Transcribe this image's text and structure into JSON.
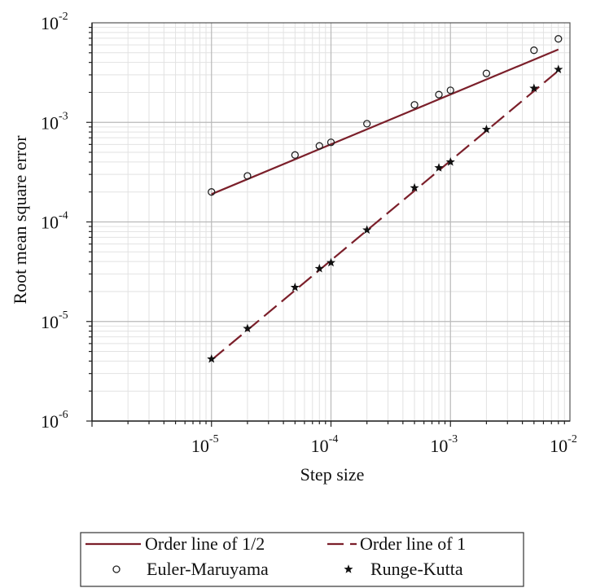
{
  "chart_data": {
    "type": "scatter",
    "xlabel": "Step size",
    "ylabel": "Root mean square error",
    "x_scale": "log",
    "y_scale": "log",
    "xlim": [
      1e-06,
      0.01
    ],
    "ylim": [
      1e-06,
      0.01
    ],
    "grid": true,
    "line_color": "#7b1f2a",
    "x_ticks": [
      {
        "value": 1e-05,
        "base": "10",
        "exp": "-5"
      },
      {
        "value": 0.0001,
        "base": "10",
        "exp": "-4"
      },
      {
        "value": 0.001,
        "base": "10",
        "exp": "-3"
      },
      {
        "value": 0.01,
        "base": "10",
        "exp": "-2"
      }
    ],
    "y_ticks": [
      {
        "value": 1e-06,
        "base": "10",
        "exp": "-6"
      },
      {
        "value": 1e-05,
        "base": "10",
        "exp": "-5"
      },
      {
        "value": 0.0001,
        "base": "10",
        "exp": "-4"
      },
      {
        "value": 0.001,
        "base": "10",
        "exp": "-3"
      },
      {
        "value": 0.01,
        "base": "10",
        "exp": "-2"
      }
    ],
    "series": [
      {
        "name": "Order line of 1/2",
        "kind": "line",
        "style": "solid",
        "x": [
          1e-05,
          0.008
        ],
        "y": [
          0.00019,
          0.0054
        ]
      },
      {
        "name": "Order line of 1",
        "kind": "line",
        "style": "dashed",
        "x": [
          1e-05,
          0.008
        ],
        "y": [
          4.1e-06,
          0.0033
        ]
      },
      {
        "name": "Euler-Maruyama",
        "kind": "scatter",
        "marker": "circle",
        "x": [
          1e-05,
          2e-05,
          5e-05,
          8e-05,
          0.0001,
          0.0002,
          0.0005,
          0.0008,
          0.001,
          0.002,
          0.005,
          0.008
        ],
        "y": [
          0.0002,
          0.00029,
          0.00047,
          0.00058,
          0.00063,
          0.00097,
          0.0015,
          0.0019,
          0.0021,
          0.0031,
          0.0053,
          0.0069
        ]
      },
      {
        "name": "Runge-Kutta",
        "kind": "scatter",
        "marker": "star",
        "x": [
          1e-05,
          2e-05,
          5e-05,
          8e-05,
          0.0001,
          0.0002,
          0.0005,
          0.0008,
          0.001,
          0.002,
          0.005,
          0.008
        ],
        "y": [
          4.2e-06,
          8.5e-06,
          2.2e-05,
          3.4e-05,
          3.9e-05,
          8.3e-05,
          0.00022,
          0.00035,
          0.0004,
          0.00085,
          0.0022,
          0.0034
        ]
      }
    ],
    "legend": {
      "position": "bottom",
      "entries": [
        {
          "label": "Order line of 1/2",
          "symbol": "solid-line"
        },
        {
          "label": "Order line of 1",
          "symbol": "dashed-line"
        },
        {
          "label": "Euler-Maruyama",
          "symbol": "circle"
        },
        {
          "label": "Runge-Kutta",
          "symbol": "star"
        }
      ]
    }
  }
}
